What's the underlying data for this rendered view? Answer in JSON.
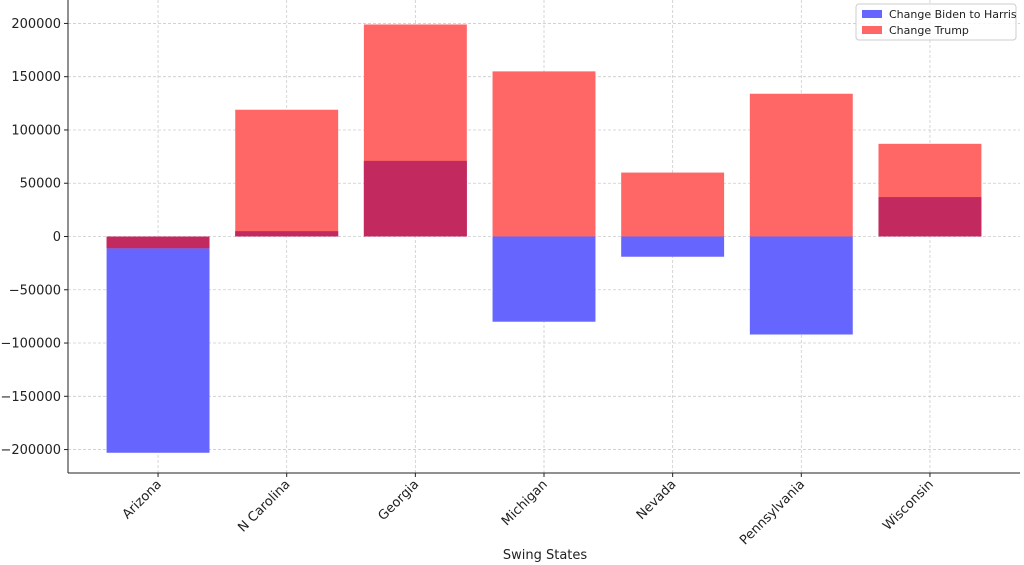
{
  "chart_data": {
    "type": "bar",
    "categories": [
      "Arizona",
      "N Carolina",
      "Georgia",
      "Michigan",
      "Nevada",
      "Pennsylvania",
      "Wisconsin"
    ],
    "series": [
      {
        "name": "Change Biden to Harris",
        "color": "#6666ff",
        "values": [
          -203000,
          5000,
          71000,
          -80000,
          -19000,
          -92000,
          37000
        ]
      },
      {
        "name": "Change Trump",
        "color": "#ff6666",
        "values": [
          -11000,
          119000,
          199000,
          155000,
          60000,
          134000,
          87000
        ]
      }
    ],
    "overlap_color": "#c2295f",
    "xlabel": "Swing States",
    "ylabel": "",
    "ylim": [
      -222000,
      222000
    ],
    "yticks": [
      -200000,
      -150000,
      -100000,
      -50000,
      0,
      50000,
      100000,
      150000,
      200000
    ],
    "ytick_labels": [
      "−200000",
      "−150000",
      "−100000",
      "−50000",
      "0",
      "50000",
      "100000",
      "150000",
      "200000"
    ],
    "grid": true,
    "legend_position": "top-right"
  }
}
